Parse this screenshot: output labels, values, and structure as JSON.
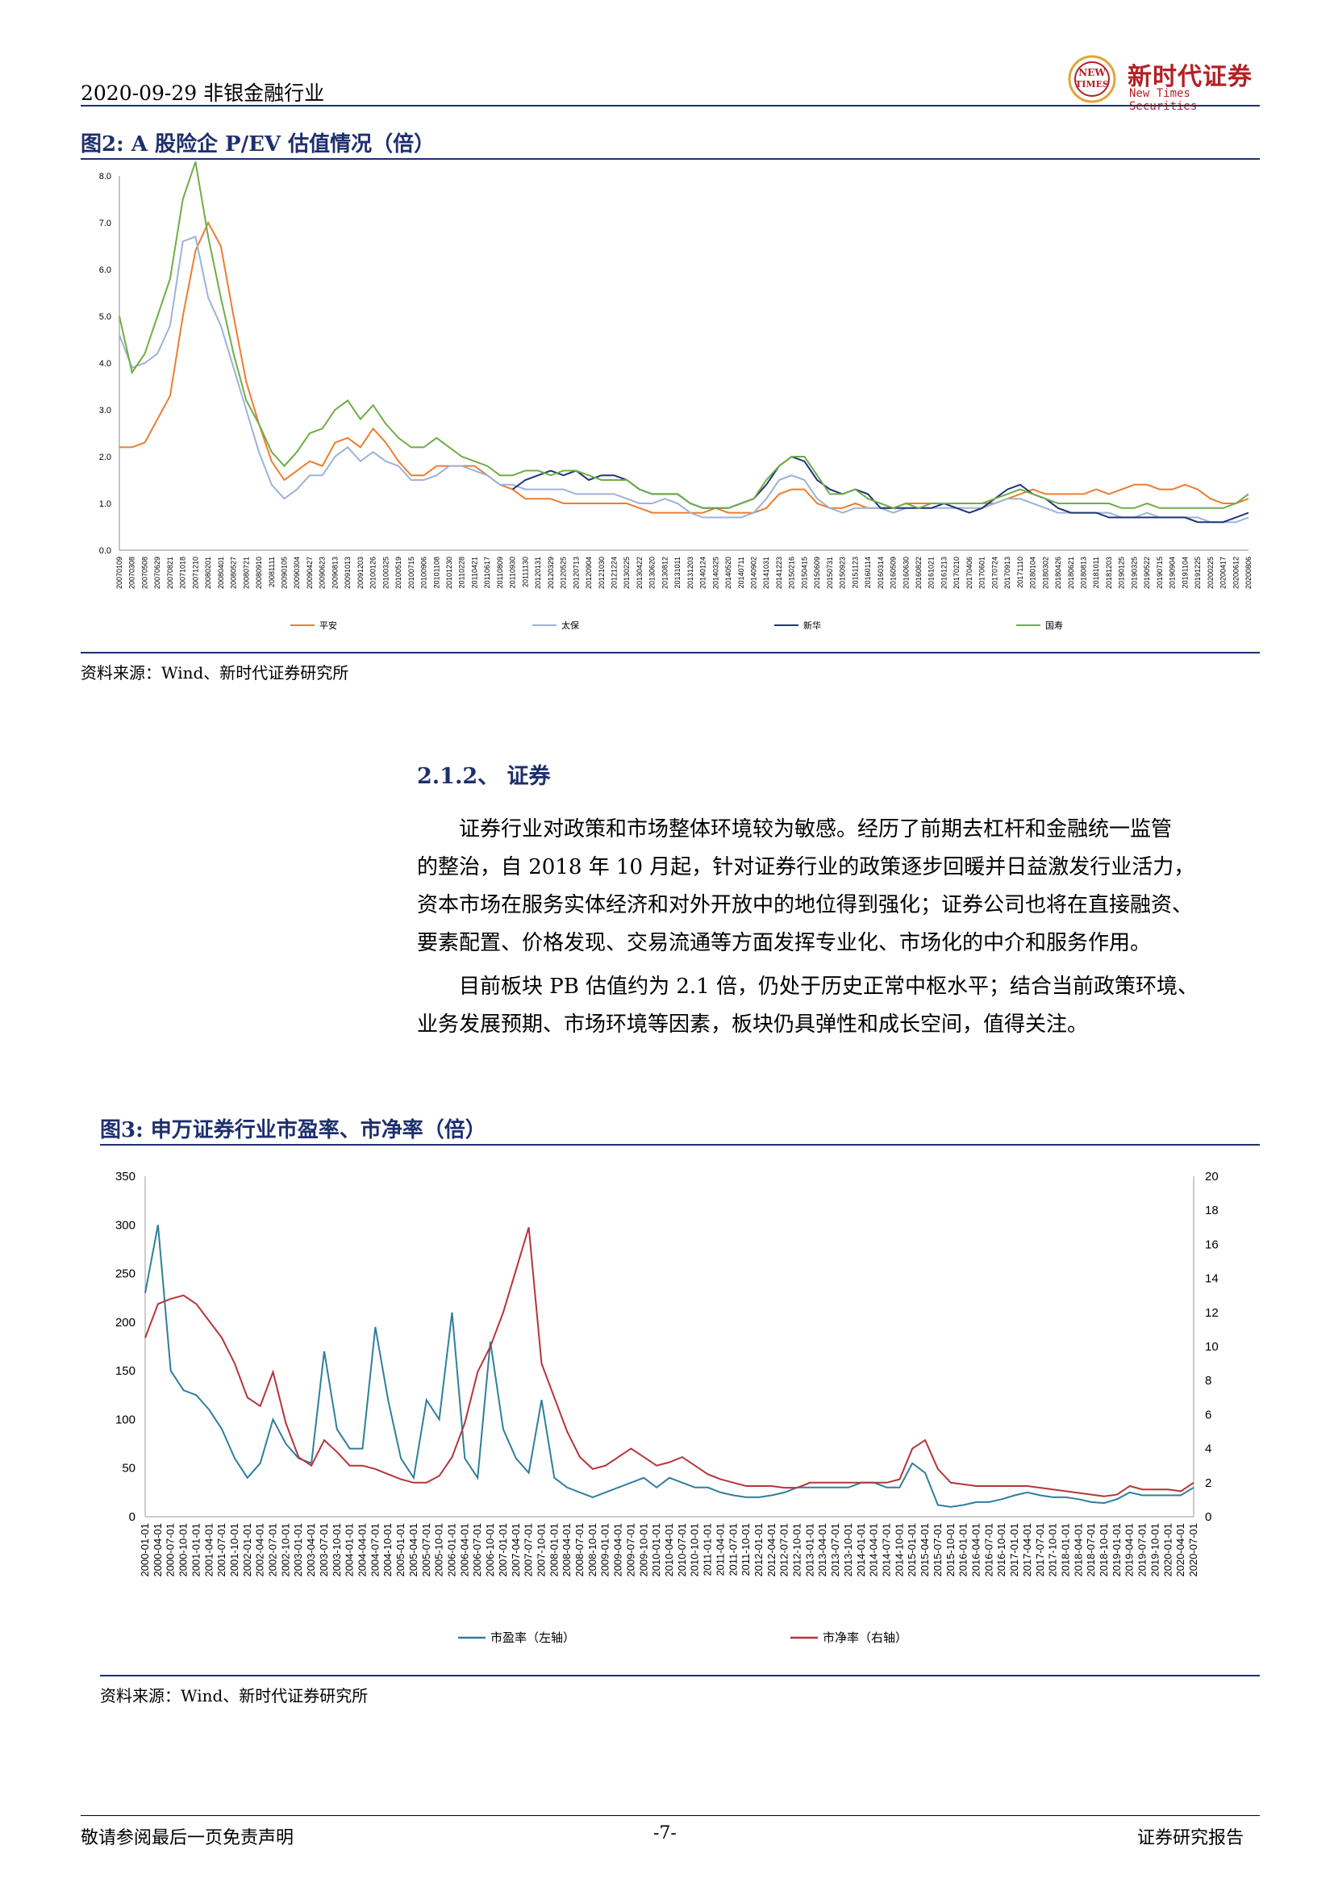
{
  "header": {
    "date_industry": "2020-09-29  非银金融行业",
    "logo_cn": "新时代证券",
    "logo_en": "New Times Securities",
    "logo_badge_1": "NEW",
    "logo_badge_2": "TIMES",
    "accent_color": "#1e2f6e",
    "brand_color": "#b32025"
  },
  "figure2": {
    "title": "图2:    A 股险企 P/EV 估值情况（倍）",
    "source": "资料来源：Wind、新时代证券研究所"
  },
  "section": {
    "title": "2.1.2、 证券",
    "para1_lines": [
      "证券行业对政策和市场整体环境较为敏感。经历了前期去杠杆和金融统一监管",
      "的整治，自 2018 年 10 月起，针对证券行业的政策逐步回暖并日益激发行业活力，",
      "资本市场在服务实体经济和对外开放中的地位得到强化；证券公司也将在直接融资、",
      "要素配置、价格发现、交易流通等方面发挥专业化、市场化的中介和服务作用。"
    ],
    "para2_lines": [
      "目前板块 PB 估值约为 2.1 倍，仍处于历史正常中枢水平；结合当前政策环境、",
      "业务发展预期、市场环境等因素，板块仍具弹性和成长空间，值得关注。"
    ]
  },
  "figure3": {
    "title": "图3:    申万证券行业市盈率、市净率（倍）",
    "source": "资料来源：Wind、新时代证券研究所"
  },
  "footer": {
    "left": "敬请参阅最后一页免责声明",
    "center": "-7-",
    "right": "证券研究报告"
  },
  "chart_data": [
    {
      "type": "line",
      "ylim": [
        0,
        8.0
      ],
      "yticks": [
        "0.0",
        "1.0",
        "2.0",
        "3.0",
        "4.0",
        "5.0",
        "6.0",
        "7.0",
        "8.0"
      ],
      "x_tick_labels": [
        "20070109",
        "20070308",
        "20070508",
        "20070629",
        "20070821",
        "20071018",
        "20071210",
        "20080201",
        "20080401",
        "20080527",
        "20080721",
        "20080910",
        "20081111",
        "20090105",
        "20090304",
        "20090427",
        "20090623",
        "20090813",
        "20091013",
        "20091203",
        "20100126",
        "20100325",
        "20100519",
        "20100715",
        "20100906",
        "20101108",
        "20101230",
        "20110228",
        "20110421",
        "20110617",
        "20110809",
        "20110930",
        "20111130",
        "20120131",
        "20120329",
        "20120525",
        "20120713",
        "20120904",
        "20121030",
        "20121224",
        "20130225",
        "20130422",
        "20130620",
        "20130812",
        "20131011",
        "20131203",
        "20140124",
        "20140325",
        "20140520",
        "20140711",
        "20140902",
        "20141031",
        "20141223",
        "20150216",
        "20150415",
        "20150609",
        "20150731",
        "20150923",
        "20151123",
        "20160114",
        "20160314",
        "20160509",
        "20160630",
        "20160822",
        "20161021",
        "20161213",
        "20170210",
        "20170406",
        "20170601",
        "20170724",
        "20170913",
        "20171110",
        "20180104",
        "20180302",
        "20180426",
        "20180621",
        "20180813",
        "20181011",
        "20181203",
        "20190125",
        "20190325",
        "20190522",
        "20190715",
        "20190904",
        "20191104",
        "20191225",
        "20200225",
        "20200417",
        "20200612",
        "20200806"
      ],
      "series": [
        {
          "name": "平安",
          "color": "#ed7d31",
          "values": [
            2.2,
            2.2,
            2.3,
            2.8,
            3.3,
            5.0,
            6.4,
            7.0,
            6.5,
            5.0,
            3.6,
            2.7,
            1.9,
            1.5,
            1.7,
            1.9,
            1.8,
            2.3,
            2.4,
            2.2,
            2.6,
            2.3,
            1.9,
            1.6,
            1.6,
            1.8,
            1.8,
            1.8,
            1.8,
            1.6,
            1.4,
            1.3,
            1.1,
            1.1,
            1.1,
            1.0,
            1.0,
            1.0,
            1.0,
            1.0,
            1.0,
            0.9,
            0.8,
            0.8,
            0.8,
            0.8,
            0.8,
            0.9,
            0.8,
            0.8,
            0.8,
            0.9,
            1.2,
            1.3,
            1.3,
            1.0,
            0.9,
            0.9,
            1.0,
            0.9,
            0.9,
            0.9,
            1.0,
            1.0,
            1.0,
            1.0,
            1.0,
            1.0,
            1.0,
            1.0,
            1.1,
            1.2,
            1.3,
            1.2,
            1.2,
            1.2,
            1.2,
            1.3,
            1.2,
            1.3,
            1.4,
            1.4,
            1.3,
            1.3,
            1.4,
            1.3,
            1.1,
            1.0,
            1.0,
            1.1
          ]
        },
        {
          "name": "太保",
          "color": "#9db3d6",
          "values": [
            4.6,
            3.9,
            4.0,
            4.2,
            4.8,
            6.6,
            6.7,
            5.4,
            4.8,
            3.9,
            3.0,
            2.1,
            1.4,
            1.1,
            1.3,
            1.6,
            1.6,
            2.0,
            2.2,
            1.9,
            2.1,
            1.9,
            1.8,
            1.5,
            1.5,
            1.6,
            1.8,
            1.8,
            1.7,
            1.6,
            1.4,
            1.4,
            1.3,
            1.3,
            1.3,
            1.3,
            1.2,
            1.2,
            1.2,
            1.2,
            1.1,
            1.0,
            1.0,
            1.1,
            1.0,
            0.8,
            0.7,
            0.7,
            0.7,
            0.7,
            0.8,
            1.1,
            1.5,
            1.6,
            1.5,
            1.1,
            0.9,
            0.8,
            0.9,
            0.9,
            0.9,
            0.8,
            0.9,
            0.9,
            0.9,
            0.9,
            0.9,
            0.9,
            0.9,
            1.0,
            1.1,
            1.1,
            1.0,
            0.9,
            0.8,
            0.8,
            0.8,
            0.8,
            0.8,
            0.7,
            0.7,
            0.8,
            0.7,
            0.7,
            0.7,
            0.7,
            0.6,
            0.6,
            0.6,
            0.7
          ]
        },
        {
          "name": "新华",
          "color": "#1f3679",
          "values": [
            null,
            null,
            null,
            null,
            null,
            null,
            null,
            null,
            null,
            null,
            null,
            null,
            null,
            null,
            null,
            null,
            null,
            null,
            null,
            null,
            null,
            null,
            null,
            null,
            null,
            null,
            null,
            null,
            null,
            null,
            null,
            1.3,
            1.5,
            1.6,
            1.7,
            1.6,
            1.7,
            1.5,
            1.6,
            1.6,
            1.5,
            1.3,
            1.2,
            1.2,
            1.2,
            1.0,
            0.9,
            0.9,
            0.9,
            1.0,
            1.1,
            1.4,
            1.8,
            2.0,
            1.9,
            1.5,
            1.3,
            1.2,
            1.3,
            1.2,
            0.9,
            0.9,
            0.9,
            0.9,
            0.9,
            1.0,
            0.9,
            0.8,
            0.9,
            1.1,
            1.3,
            1.4,
            1.2,
            1.1,
            0.9,
            0.8,
            0.8,
            0.8,
            0.7,
            0.7,
            0.7,
            0.7,
            0.7,
            0.7,
            0.7,
            0.6,
            0.6,
            0.6,
            0.7,
            0.8
          ]
        },
        {
          "name": "国寿",
          "color": "#70ad47",
          "values": [
            5.0,
            3.8,
            4.2,
            5.0,
            5.8,
            7.5,
            8.3,
            6.7,
            5.4,
            4.2,
            3.2,
            2.7,
            2.1,
            1.8,
            2.1,
            2.5,
            2.6,
            3.0,
            3.2,
            2.8,
            3.1,
            2.7,
            2.4,
            2.2,
            2.2,
            2.4,
            2.2,
            2.0,
            1.9,
            1.8,
            1.6,
            1.6,
            1.7,
            1.7,
            1.6,
            1.7,
            1.7,
            1.6,
            1.5,
            1.5,
            1.5,
            1.3,
            1.2,
            1.2,
            1.2,
            1.0,
            0.9,
            0.9,
            0.9,
            1.0,
            1.1,
            1.5,
            1.8,
            2.0,
            2.0,
            1.6,
            1.2,
            1.2,
            1.3,
            1.1,
            1.0,
            0.9,
            1.0,
            0.9,
            1.0,
            1.0,
            1.0,
            1.0,
            1.0,
            1.1,
            1.2,
            1.3,
            1.2,
            1.1,
            1.0,
            1.0,
            1.0,
            1.0,
            1.0,
            0.9,
            0.9,
            1.0,
            0.9,
            0.9,
            0.9,
            0.9,
            0.9,
            0.9,
            1.0,
            1.2
          ]
        }
      ]
    },
    {
      "type": "line",
      "ylim_left": [
        0,
        350
      ],
      "ylim_right": [
        0,
        20
      ],
      "yticks_left": [
        "0",
        "50",
        "100",
        "150",
        "200",
        "250",
        "300",
        "350"
      ],
      "yticks_right": [
        "0",
        "2",
        "4",
        "6",
        "8",
        "10",
        "12",
        "14",
        "16",
        "18",
        "20"
      ],
      "x_tick_labels": [
        "2000-01-01",
        "2000-04-01",
        "2000-07-01",
        "2000-10-01",
        "2001-01-01",
        "2001-04-01",
        "2001-07-01",
        "2001-10-01",
        "2002-01-01",
        "2002-04-01",
        "2002-07-01",
        "2002-10-01",
        "2003-01-01",
        "2003-04-01",
        "2003-07-01",
        "2003-10-01",
        "2004-01-01",
        "2004-04-01",
        "2004-07-01",
        "2004-10-01",
        "2005-01-01",
        "2005-04-01",
        "2005-07-01",
        "2005-10-01",
        "2006-01-01",
        "2006-04-01",
        "2006-07-01",
        "2006-10-01",
        "2007-01-01",
        "2007-04-01",
        "2007-07-01",
        "2007-10-01",
        "2008-01-01",
        "2008-04-01",
        "2008-07-01",
        "2008-10-01",
        "2009-01-01",
        "2009-04-01",
        "2009-07-01",
        "2009-10-01",
        "2010-01-01",
        "2010-04-01",
        "2010-07-01",
        "2010-10-01",
        "2011-01-01",
        "2011-04-01",
        "2011-07-01",
        "2011-10-01",
        "2012-01-01",
        "2012-04-01",
        "2012-07-01",
        "2012-10-01",
        "2013-01-01",
        "2013-04-01",
        "2013-07-01",
        "2013-10-01",
        "2014-01-01",
        "2014-04-01",
        "2014-07-01",
        "2014-10-01",
        "2015-01-01",
        "2015-04-01",
        "2015-07-01",
        "2015-10-01",
        "2016-01-01",
        "2016-04-01",
        "2016-07-01",
        "2016-10-01",
        "2017-01-01",
        "2017-04-01",
        "2017-07-01",
        "2017-10-01",
        "2018-01-01",
        "2018-04-01",
        "2018-07-01",
        "2018-10-01",
        "2019-01-01",
        "2019-04-01",
        "2019-07-01",
        "2019-10-01",
        "2020-01-01",
        "2020-04-01",
        "2020-07-01"
      ],
      "series": [
        {
          "name": "市盈率（左轴）",
          "axis": "left",
          "color": "#2f7f9b",
          "values": [
            230,
            300,
            150,
            130,
            125,
            110,
            90,
            60,
            40,
            55,
            100,
            75,
            60,
            55,
            170,
            90,
            70,
            70,
            195,
            120,
            60,
            40,
            120,
            100,
            210,
            60,
            40,
            180,
            90,
            60,
            45,
            120,
            40,
            30,
            25,
            20,
            25,
            30,
            35,
            40,
            30,
            40,
            35,
            30,
            30,
            25,
            22,
            20,
            20,
            22,
            25,
            30,
            30,
            30,
            30,
            30,
            35,
            35,
            30,
            30,
            55,
            45,
            12,
            10,
            12,
            15,
            15,
            18,
            22,
            25,
            22,
            20,
            20,
            18,
            15,
            14,
            18,
            25,
            22,
            22,
            22,
            22,
            30
          ]
        },
        {
          "name": "市净率（右轴）",
          "axis": "right",
          "color": "#b5353a",
          "values": [
            10.5,
            12.5,
            12.8,
            13.0,
            12.5,
            11.5,
            10.5,
            9.0,
            7.0,
            6.5,
            8.5,
            5.5,
            3.5,
            3.0,
            4.5,
            3.8,
            3.0,
            3.0,
            2.8,
            2.5,
            2.2,
            2.0,
            2.0,
            2.4,
            3.5,
            5.5,
            8.5,
            10.0,
            12.0,
            14.5,
            17.0,
            9.0,
            7.0,
            5.0,
            3.5,
            2.8,
            3.0,
            3.5,
            4.0,
            3.5,
            3.0,
            3.2,
            3.5,
            3.0,
            2.5,
            2.2,
            2.0,
            1.8,
            1.8,
            1.8,
            1.7,
            1.7,
            2.0,
            2.0,
            2.0,
            2.0,
            2.0,
            2.0,
            2.0,
            2.2,
            4.0,
            4.5,
            2.8,
            2.0,
            1.9,
            1.8,
            1.8,
            1.8,
            1.8,
            1.8,
            1.7,
            1.6,
            1.5,
            1.4,
            1.3,
            1.2,
            1.3,
            1.8,
            1.6,
            1.6,
            1.6,
            1.5,
            2.0
          ]
        }
      ]
    }
  ]
}
